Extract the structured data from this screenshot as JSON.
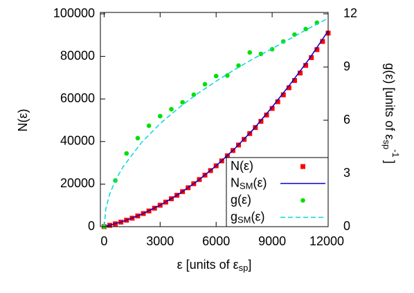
{
  "chart_data": {
    "type": "line",
    "xlabel": {
      "text": "ε [units of ε",
      "sub": "sp",
      "end": "]"
    },
    "ylabel": "N(ε)",
    "y2label": {
      "text": "g(ε) [units of ε",
      "sub": "sp",
      "sup": "-1",
      "end": "]"
    },
    "xlim": [
      -200,
      12000
    ],
    "xticks": [
      0,
      3000,
      6000,
      9000,
      12000
    ],
    "ylim": [
      0,
      100000
    ],
    "yticks": [
      0,
      20000,
      40000,
      60000,
      80000,
      100000
    ],
    "y2lim": [
      0,
      12
    ],
    "y2ticks": [
      0,
      3,
      6,
      9,
      12
    ],
    "legend": "lower-right",
    "series": [
      {
        "name": "N",
        "name_rest": "(ε)",
        "style": "points",
        "marker": "square",
        "color": "#ff0000",
        "x": [
          0,
          300,
          600,
          900,
          1200,
          1500,
          1800,
          2100,
          2400,
          2700,
          3000,
          3300,
          3600,
          3900,
          4200,
          4500,
          4800,
          5100,
          5400,
          5700,
          6000,
          6300,
          6600,
          6900,
          7200,
          7500,
          7800,
          8100,
          8400,
          8700,
          9000,
          9300,
          9600,
          9900,
          10200,
          10500,
          10800,
          11100,
          11400,
          11700,
          12000
        ],
        "values": [
          0,
          630,
          1340,
          2140,
          3020,
          3980,
          5030,
          6160,
          7380,
          8680,
          10070,
          11540,
          13100,
          14740,
          16460,
          18270,
          20170,
          22140,
          24210,
          26350,
          28580,
          30900,
          33300,
          35780,
          38350,
          41000,
          43740,
          46560,
          49470,
          52460,
          55540,
          58700,
          61940,
          65270,
          68680,
          72180,
          75760,
          79430,
          83180,
          87020,
          90940
        ]
      },
      {
        "name": "N",
        "name_sub": "SM",
        "name_rest": "(ε)",
        "style": "line",
        "color": "#0000c8",
        "x": [
          0,
          1000,
          2000,
          3000,
          4000,
          5000,
          6000,
          7000,
          8000,
          9000,
          10000,
          11000,
          12000
        ],
        "values": [
          0,
          2420,
          5780,
          10070,
          15300,
          21480,
          28600,
          36700,
          45800,
          56200,
          67300,
          79000,
          92000
        ]
      },
      {
        "name": "g",
        "name_rest": "(ε)",
        "style": "points",
        "marker": "circle",
        "color": "#00e000",
        "axis": "y2",
        "x": [
          0,
          600,
          1200,
          1800,
          2400,
          3000,
          3600,
          4200,
          4800,
          5400,
          6000,
          6600,
          7200,
          7800,
          8400,
          9000,
          9600,
          10200,
          10800,
          11400
        ],
        "values": [
          0,
          2.6,
          4.13,
          4.99,
          5.69,
          6.23,
          6.62,
          7.01,
          7.44,
          8.03,
          8.49,
          8.52,
          9.08,
          9.82,
          9.74,
          10.0,
          10.44,
          10.83,
          11.14,
          11.5
        ]
      },
      {
        "name": "g",
        "name_sub": "SM",
        "name_rest": "(ε)",
        "style": "dashed",
        "color": "#00d8e0",
        "axis": "y2",
        "x": [
          0,
          100,
          300,
          600,
          1000,
          2000,
          3000,
          4000,
          5000,
          6000,
          7000,
          8000,
          9000,
          10000,
          11000,
          12000
        ],
        "values": [
          0,
          1.06,
          1.84,
          2.6,
          3.35,
          4.74,
          5.81,
          6.7,
          7.5,
          8.2,
          8.86,
          9.47,
          10.04,
          10.62,
          11.2,
          11.75
        ]
      }
    ]
  }
}
